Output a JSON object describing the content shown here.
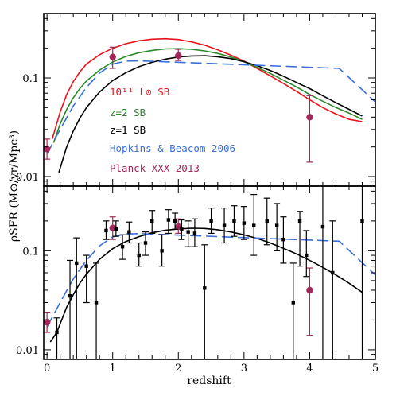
{
  "chart_data": {
    "type": "line",
    "x_label": "redshift",
    "y_label": "ρSFR (M⊙/yr/Mpc³)",
    "y_scale": "log",
    "x_range": [
      -0.05,
      5.0
    ],
    "y_range": [
      0.008,
      0.45
    ],
    "x_ticks": [
      "0",
      "1",
      "2",
      "3",
      "4",
      "5"
    ],
    "y_ticks": [
      "0.1",
      "0.01"
    ],
    "panels": [
      {
        "id": "top",
        "legend": [
          {
            "label": "10¹¹ L⊙ SB",
            "color": "#e8141c"
          },
          {
            "label": "z=2 SB",
            "color": "#2a8a2a"
          },
          {
            "label": "z=1 SB",
            "color": "#000000"
          },
          {
            "label": "Hopkins & Beacom 2006",
            "color": "#3a6fd8"
          },
          {
            "label": "Planck XXX 2013",
            "color": "#a0285a"
          }
        ],
        "series": [
          {
            "name": "10¹¹ L⊙ SB",
            "style": "solid",
            "color": "#e8141c",
            "points": [
              [
                0.08,
                0.024
              ],
              [
                0.2,
                0.045
              ],
              [
                0.3,
                0.068
              ],
              [
                0.4,
                0.092
              ],
              [
                0.5,
                0.115
              ],
              [
                0.6,
                0.138
              ],
              [
                0.8,
                0.172
              ],
              [
                1.0,
                0.2
              ],
              [
                1.2,
                0.222
              ],
              [
                1.4,
                0.238
              ],
              [
                1.6,
                0.247
              ],
              [
                1.8,
                0.25
              ],
              [
                2.0,
                0.245
              ],
              [
                2.2,
                0.232
              ],
              [
                2.4,
                0.215
              ],
              [
                2.6,
                0.193
              ],
              [
                2.8,
                0.17
              ],
              [
                3.0,
                0.148
              ],
              [
                3.2,
                0.125
              ],
              [
                3.4,
                0.105
              ],
              [
                3.6,
                0.088
              ],
              [
                3.8,
                0.073
              ],
              [
                4.0,
                0.06
              ],
              [
                4.2,
                0.05
              ],
              [
                4.4,
                0.043
              ],
              [
                4.6,
                0.038
              ],
              [
                4.8,
                0.036
              ]
            ]
          },
          {
            "name": "z=2 SB",
            "style": "solid",
            "color": "#2a8a2a",
            "points": [
              [
                0.1,
                0.022
              ],
              [
                0.2,
                0.034
              ],
              [
                0.3,
                0.048
              ],
              [
                0.4,
                0.063
              ],
              [
                0.5,
                0.078
              ],
              [
                0.6,
                0.093
              ],
              [
                0.8,
                0.12
              ],
              [
                1.0,
                0.145
              ],
              [
                1.2,
                0.165
              ],
              [
                1.4,
                0.18
              ],
              [
                1.6,
                0.19
              ],
              [
                1.8,
                0.197
              ],
              [
                2.0,
                0.198
              ],
              [
                2.2,
                0.195
              ],
              [
                2.4,
                0.188
              ],
              [
                2.6,
                0.177
              ],
              [
                2.8,
                0.163
              ],
              [
                3.0,
                0.146
              ],
              [
                3.2,
                0.128
              ],
              [
                3.4,
                0.111
              ],
              [
                3.6,
                0.095
              ],
              [
                3.8,
                0.081
              ],
              [
                4.0,
                0.068
              ],
              [
                4.2,
                0.058
              ],
              [
                4.4,
                0.05
              ],
              [
                4.6,
                0.044
              ],
              [
                4.8,
                0.038
              ]
            ]
          },
          {
            "name": "z=1 SB",
            "style": "solid",
            "color": "#000000",
            "points": [
              [
                0.18,
                0.011
              ],
              [
                0.3,
                0.02
              ],
              [
                0.4,
                0.029
              ],
              [
                0.5,
                0.039
              ],
              [
                0.6,
                0.05
              ],
              [
                0.8,
                0.072
              ],
              [
                1.0,
                0.094
              ],
              [
                1.2,
                0.113
              ],
              [
                1.4,
                0.13
              ],
              [
                1.6,
                0.144
              ],
              [
                1.8,
                0.155
              ],
              [
                2.0,
                0.163
              ],
              [
                2.2,
                0.167
              ],
              [
                2.4,
                0.168
              ],
              [
                2.6,
                0.164
              ],
              [
                2.8,
                0.157
              ],
              [
                3.0,
                0.146
              ],
              [
                3.2,
                0.133
              ],
              [
                3.4,
                0.119
              ],
              [
                3.6,
                0.104
              ],
              [
                3.8,
                0.09
              ],
              [
                4.0,
                0.078
              ],
              [
                4.2,
                0.066
              ],
              [
                4.4,
                0.056
              ],
              [
                4.6,
                0.048
              ],
              [
                4.8,
                0.041
              ]
            ]
          },
          {
            "name": "Hopkins & Beacom 2006",
            "style": "dashed",
            "color": "#3a6fd8",
            "points": [
              [
                0.0,
                0.017
              ],
              [
                0.2,
                0.03
              ],
              [
                0.4,
                0.052
              ],
              [
                0.6,
                0.08
              ],
              [
                0.8,
                0.112
              ],
              [
                1.0,
                0.138
              ],
              [
                1.2,
                0.148
              ],
              [
                1.4,
                0.149
              ],
              [
                4.45,
                0.125
              ],
              [
                5.0,
                0.057
              ]
            ]
          }
        ],
        "data_points": [
          {
            "x": 0.0,
            "y": 0.019,
            "ylo": 0.015,
            "yhi": 0.024,
            "color": "#a0285a"
          },
          {
            "x": 1.0,
            "y": 0.163,
            "ylo": 0.125,
            "yhi": 0.205,
            "color": "#a0285a"
          },
          {
            "x": 2.0,
            "y": 0.168,
            "ylo": 0.15,
            "yhi": 0.195,
            "color": "#a0285a"
          },
          {
            "x": 4.0,
            "y": 0.04,
            "ylo": 0.014,
            "yhi": 0.066,
            "color": "#a0285a"
          }
        ]
      },
      {
        "id": "bottom",
        "series": [
          {
            "name": "",
            "style": "solid",
            "color": "#000000",
            "points": [
              [
                0.05,
                0.012
              ],
              [
                0.15,
                0.015
              ],
              [
                0.3,
                0.027
              ],
              [
                0.4,
                0.036
              ],
              [
                0.5,
                0.047
              ],
              [
                0.6,
                0.058
              ],
              [
                0.8,
                0.082
              ],
              [
                1.0,
                0.105
              ],
              [
                1.2,
                0.124
              ],
              [
                1.4,
                0.139
              ],
              [
                1.6,
                0.152
              ],
              [
                1.8,
                0.161
              ],
              [
                2.0,
                0.166
              ],
              [
                2.2,
                0.169
              ],
              [
                2.4,
                0.168
              ],
              [
                2.6,
                0.163
              ],
              [
                2.8,
                0.155
              ],
              [
                3.0,
                0.145
              ],
              [
                3.2,
                0.133
              ],
              [
                3.4,
                0.12
              ],
              [
                3.6,
                0.106
              ],
              [
                3.8,
                0.093
              ],
              [
                4.0,
                0.08
              ],
              [
                4.2,
                0.068
              ],
              [
                4.4,
                0.057
              ],
              [
                4.6,
                0.047
              ],
              [
                4.8,
                0.038
              ]
            ]
          },
          {
            "name": "",
            "style": "dashed",
            "color": "#3a6fd8",
            "points": [
              [
                0.0,
                0.017
              ],
              [
                0.2,
                0.03
              ],
              [
                0.4,
                0.052
              ],
              [
                0.6,
                0.08
              ],
              [
                0.8,
                0.112
              ],
              [
                1.0,
                0.138
              ],
              [
                1.2,
                0.148
              ],
              [
                1.4,
                0.149
              ],
              [
                4.45,
                0.125
              ],
              [
                5.0,
                0.057
              ]
            ]
          }
        ],
        "data_points": [
          {
            "x": 0.0,
            "y": 0.019,
            "ylo": 0.015,
            "yhi": 0.024,
            "color": "#a0285a"
          },
          {
            "x": 1.0,
            "y": 0.17,
            "ylo": 0.13,
            "yhi": 0.22,
            "color": "#a0285a"
          },
          {
            "x": 2.0,
            "y": 0.175,
            "ylo": 0.15,
            "yhi": 0.21,
            "color": "#a0285a"
          },
          {
            "x": 4.0,
            "y": 0.04,
            "ylo": 0.014,
            "yhi": 0.067,
            "color": "#a0285a"
          },
          {
            "x": 0.15,
            "y": 0.015,
            "ylo": 0.008,
            "yhi": 0.021,
            "color": "#000000"
          },
          {
            "x": 0.35,
            "y": 0.035,
            "ylo": 0.008,
            "yhi": 0.08,
            "color": "#000000"
          },
          {
            "x": 0.45,
            "y": 0.075,
            "ylo": 0.008,
            "yhi": 0.135,
            "color": "#000000"
          },
          {
            "x": 0.6,
            "y": 0.07,
            "ylo": 0.03,
            "yhi": 0.09,
            "color": "#000000"
          },
          {
            "x": 0.75,
            "y": 0.03,
            "ylo": 0.008,
            "yhi": 0.075,
            "color": "#000000"
          },
          {
            "x": 0.9,
            "y": 0.16,
            "ylo": 0.13,
            "yhi": 0.2,
            "color": "#000000"
          },
          {
            "x": 1.05,
            "y": 0.165,
            "ylo": 0.14,
            "yhi": 0.2,
            "color": "#000000"
          },
          {
            "x": 1.15,
            "y": 0.11,
            "ylo": 0.082,
            "yhi": 0.145,
            "color": "#000000"
          },
          {
            "x": 1.25,
            "y": 0.155,
            "ylo": 0.12,
            "yhi": 0.195,
            "color": "#000000"
          },
          {
            "x": 1.4,
            "y": 0.09,
            "ylo": 0.07,
            "yhi": 0.12,
            "color": "#000000"
          },
          {
            "x": 1.5,
            "y": 0.12,
            "ylo": 0.09,
            "yhi": 0.155,
            "color": "#000000"
          },
          {
            "x": 1.6,
            "y": 0.2,
            "ylo": 0.15,
            "yhi": 0.255,
            "color": "#000000"
          },
          {
            "x": 1.75,
            "y": 0.1,
            "ylo": 0.07,
            "yhi": 0.145,
            "color": "#000000"
          },
          {
            "x": 1.85,
            "y": 0.205,
            "ylo": 0.15,
            "yhi": 0.26,
            "color": "#000000"
          },
          {
            "x": 1.95,
            "y": 0.2,
            "ylo": 0.165,
            "yhi": 0.24,
            "color": "#000000"
          },
          {
            "x": 2.05,
            "y": 0.165,
            "ylo": 0.13,
            "yhi": 0.205,
            "color": "#000000"
          },
          {
            "x": 2.15,
            "y": 0.155,
            "ylo": 0.11,
            "yhi": 0.2,
            "color": "#000000"
          },
          {
            "x": 2.25,
            "y": 0.15,
            "ylo": 0.11,
            "yhi": 0.21,
            "color": "#000000"
          },
          {
            "x": 2.4,
            "y": 0.042,
            "ylo": 0.008,
            "yhi": 0.115,
            "color": "#000000"
          },
          {
            "x": 2.5,
            "y": 0.2,
            "ylo": 0.15,
            "yhi": 0.27,
            "color": "#000000"
          },
          {
            "x": 2.7,
            "y": 0.18,
            "ylo": 0.12,
            "yhi": 0.27,
            "color": "#000000"
          },
          {
            "x": 2.85,
            "y": 0.2,
            "ylo": 0.14,
            "yhi": 0.285,
            "color": "#000000"
          },
          {
            "x": 3.0,
            "y": 0.19,
            "ylo": 0.13,
            "yhi": 0.28,
            "color": "#000000"
          },
          {
            "x": 3.15,
            "y": 0.18,
            "ylo": 0.09,
            "yhi": 0.37,
            "color": "#000000"
          },
          {
            "x": 3.35,
            "y": 0.2,
            "ylo": 0.115,
            "yhi": 0.34,
            "color": "#000000"
          },
          {
            "x": 3.5,
            "y": 0.18,
            "ylo": 0.1,
            "yhi": 0.3,
            "color": "#000000"
          },
          {
            "x": 3.6,
            "y": 0.13,
            "ylo": 0.075,
            "yhi": 0.22,
            "color": "#000000"
          },
          {
            "x": 3.75,
            "y": 0.03,
            "ylo": 0.008,
            "yhi": 0.075,
            "color": "#000000"
          },
          {
            "x": 3.85,
            "y": 0.2,
            "ylo": 0.07,
            "yhi": 0.25,
            "color": "#000000"
          },
          {
            "x": 3.95,
            "y": 0.09,
            "ylo": 0.055,
            "yhi": 0.16,
            "color": "#000000"
          },
          {
            "x": 4.2,
            "y": 0.175,
            "ylo": 0.008,
            "yhi": 0.45,
            "color": "#000000"
          },
          {
            "x": 4.35,
            "y": 0.06,
            "ylo": 0.008,
            "yhi": 0.2,
            "color": "#000000"
          },
          {
            "x": 4.8,
            "y": 0.2,
            "ylo": 0.008,
            "yhi": 0.45,
            "color": "#000000"
          }
        ]
      }
    ]
  }
}
